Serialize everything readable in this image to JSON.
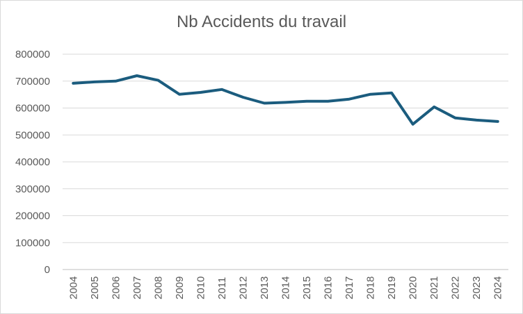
{
  "chart_data": {
    "type": "line",
    "title": "Nb Accidents du travail",
    "xlabel": "",
    "ylabel": "",
    "categories": [
      "2004",
      "2005",
      "2006",
      "2007",
      "2008",
      "2009",
      "2010",
      "2011",
      "2012",
      "2013",
      "2014",
      "2015",
      "2016",
      "2017",
      "2018",
      "2019",
      "2020",
      "2021",
      "2022",
      "2023",
      "2024"
    ],
    "series": [
      {
        "values": [
          692000,
          697000,
          700000,
          720000,
          703000,
          651000,
          658000,
          669000,
          640000,
          618000,
          621000,
          625000,
          625000,
          633000,
          651000,
          656000,
          540000,
          604000,
          563000,
          555000,
          550000
        ],
        "color": "#1b5c7e"
      }
    ],
    "ylim": [
      0,
      800000
    ],
    "yticks": [
      "0",
      "100000",
      "200000",
      "300000",
      "400000",
      "500000",
      "600000",
      "700000",
      "800000"
    ],
    "grid": true,
    "legend": "none"
  }
}
